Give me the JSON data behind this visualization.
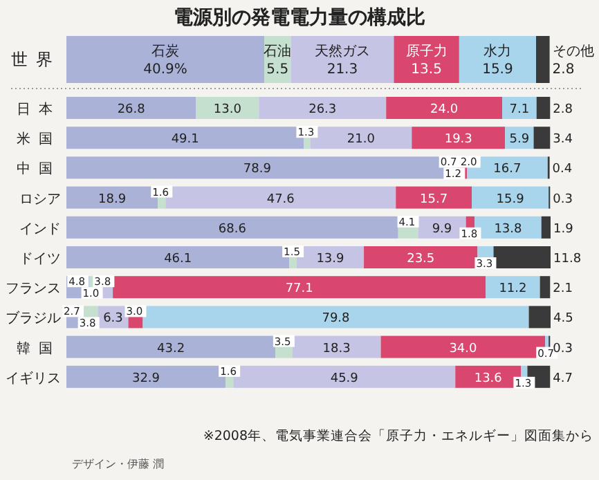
{
  "chart_data": {
    "type": "bar",
    "orientation": "horizontal",
    "stacked": true,
    "title": "電源別の発電電力量の構成比",
    "categories": [
      "世界",
      "日本",
      "米国",
      "中国",
      "ロシア",
      "インド",
      "ドイツ",
      "フランス",
      "ブラジル",
      "韓国",
      "イギリス"
    ],
    "series": [
      {
        "name": "石炭",
        "color": "#aab2d8",
        "values": [
          40.9,
          26.8,
          49.1,
          78.9,
          18.9,
          68.6,
          46.1,
          4.8,
          2.7,
          43.2,
          32.9
        ],
        "value_labels": [
          "40.9%",
          "26.8",
          "49.1",
          "78.9",
          "18.9",
          "68.6",
          "46.1",
          "4.8",
          "2.7",
          "43.2",
          "32.9"
        ]
      },
      {
        "name": "石油",
        "color": "#c6e0cf",
        "values": [
          5.5,
          13.0,
          1.3,
          0.7,
          1.6,
          4.1,
          1.5,
          1.0,
          3.8,
          3.5,
          1.6
        ],
        "value_labels": [
          "5.5",
          "13.0",
          "1.3",
          "0.7",
          "1.6",
          "4.1",
          "1.5",
          "1.0",
          "3.8",
          "3.5",
          "1.6"
        ]
      },
      {
        "name": "天然ガス",
        "color": "#c5c4e4",
        "values": [
          21.3,
          26.3,
          21.0,
          1.2,
          47.6,
          9.9,
          13.9,
          3.8,
          6.3,
          18.3,
          45.9
        ],
        "value_labels": [
          "21.3",
          "26.3",
          "21.0",
          "1.2",
          "47.6",
          "9.9",
          "13.9",
          "3.8",
          "6.3",
          "18.3",
          "45.9"
        ]
      },
      {
        "name": "原子力",
        "color": "#d9476f",
        "values": [
          13.5,
          24.0,
          19.3,
          2.0,
          15.7,
          1.8,
          23.5,
          77.1,
          3.0,
          34.0,
          13.6
        ],
        "value_labels": [
          "13.5",
          "24.0",
          "19.3",
          "2.0",
          "15.7",
          "1.8",
          "23.5",
          "77.1",
          "3.0",
          "34.0",
          "13.6"
        ]
      },
      {
        "name": "水力",
        "color": "#a8d4ec",
        "values": [
          15.9,
          7.1,
          5.9,
          16.7,
          15.9,
          13.8,
          3.3,
          11.2,
          79.8,
          0.7,
          1.3
        ],
        "value_labels": [
          "15.9",
          "7.1",
          "5.9",
          "16.7",
          "15.9",
          "13.8",
          "3.3",
          "11.2",
          "79.8",
          "0.7",
          "1.3"
        ]
      },
      {
        "name": "その他",
        "color": "#3a3a3a",
        "values": [
          2.8,
          2.8,
          3.4,
          0.4,
          0.3,
          1.9,
          11.8,
          2.1,
          4.5,
          0.3,
          4.7
        ],
        "value_labels": [
          "2.8",
          "2.8",
          "3.4",
          "0.4",
          "0.3",
          "1.9",
          "11.8",
          "2.1",
          "4.5",
          "0.3",
          "4.7"
        ]
      }
    ],
    "annotations": [
      "※2008年、電気事業連合会「原子力・エネルギー」図面集から",
      "デザイン・伊藤 潤"
    ]
  }
}
